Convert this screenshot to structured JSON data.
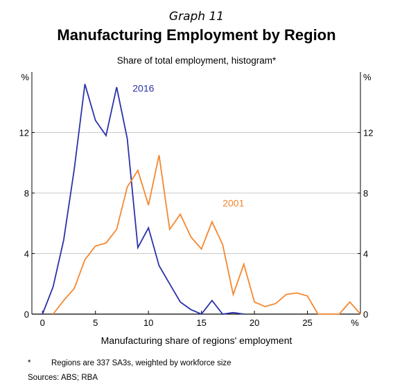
{
  "header": {
    "graph_number": "Graph 11",
    "title": "Manufacturing Employment by Region",
    "subtitle": "Share of total employment, histogram*"
  },
  "footer": {
    "note_marker": "*",
    "note": "Regions are 337 SA3s, weighted by workforce size",
    "sources": "Sources: ABS; RBA"
  },
  "colors": {
    "s2016": "#2a32a8",
    "s2001": "#f5862e",
    "grid": "#c8c8c8",
    "axis": "#000000"
  },
  "chart_data": {
    "type": "line",
    "xlabel": "Manufacturing share of regions' employment",
    "ylabel_left": "%",
    "ylabel_right": "%",
    "x_unit_label": "%",
    "xlim": [
      -1,
      30
    ],
    "ylim": [
      0,
      16
    ],
    "x_ticks": [
      0,
      5,
      10,
      15,
      20,
      25
    ],
    "y_ticks": [
      0,
      4,
      8,
      12
    ],
    "grid": true,
    "series": [
      {
        "name": "2016",
        "label_at": [
          8.5,
          14.7
        ],
        "x": [
          0,
          1,
          2,
          3,
          4,
          5,
          6,
          7,
          8,
          9,
          10,
          11,
          12,
          13,
          14,
          15,
          16,
          17,
          18,
          19
        ],
        "y": [
          0,
          1.8,
          4.9,
          9.6,
          15.2,
          12.8,
          11.8,
          15.0,
          11.6,
          4.4,
          5.7,
          3.2,
          2.0,
          0.8,
          0.3,
          0,
          0.9,
          0,
          0.1,
          0
        ]
      },
      {
        "name": "2001",
        "label_at": [
          17,
          7.1
        ],
        "x": [
          1,
          2,
          3,
          4,
          5,
          6,
          7,
          8,
          9,
          10,
          11,
          12,
          13,
          14,
          15,
          16,
          17,
          18,
          19,
          20,
          21,
          22,
          23,
          24,
          25,
          26,
          27,
          28,
          29,
          30
        ],
        "y": [
          0,
          0.9,
          1.7,
          3.6,
          4.5,
          4.7,
          5.6,
          8.4,
          9.5,
          7.2,
          10.5,
          5.6,
          6.6,
          5.1,
          4.3,
          6.1,
          4.6,
          1.3,
          3.3,
          0.8,
          0.5,
          0.7,
          1.3,
          1.4,
          1.2,
          0,
          0,
          0,
          0.8,
          0
        ]
      }
    ]
  }
}
